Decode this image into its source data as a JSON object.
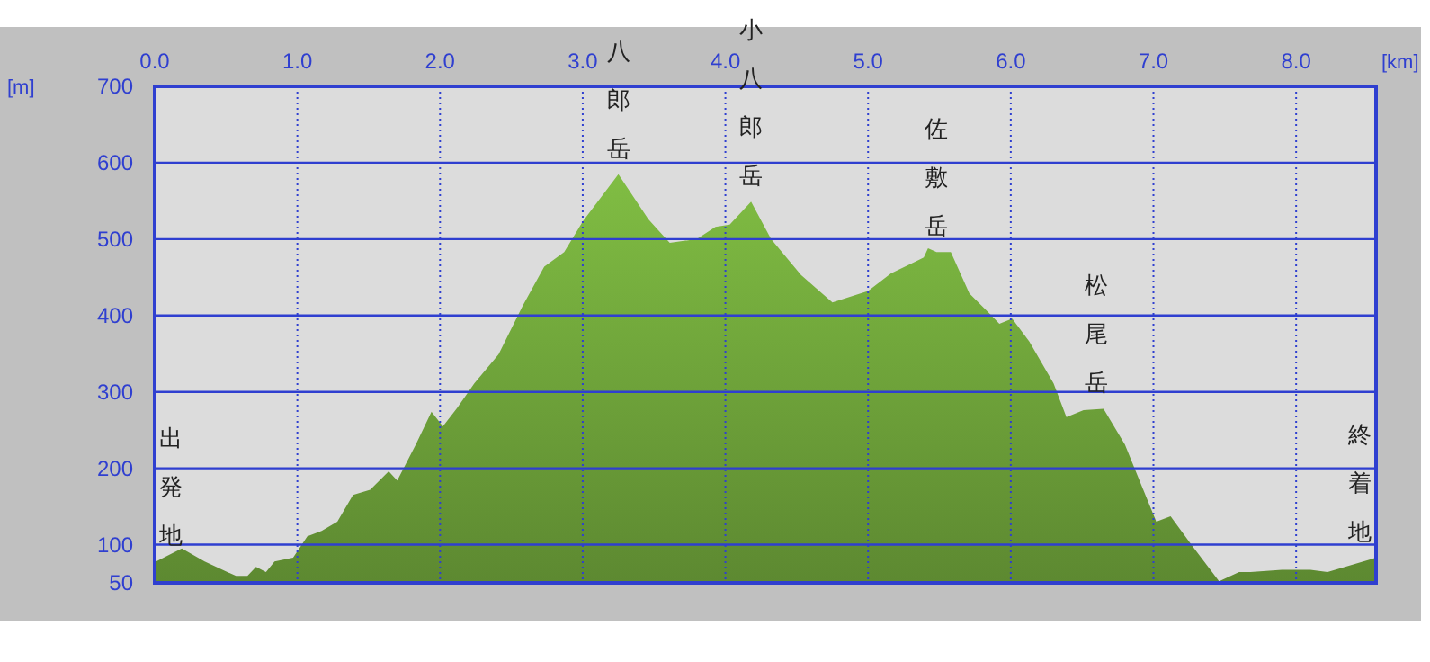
{
  "chart_data": {
    "type": "area",
    "xlabel": "[km]",
    "ylabel": "[m]",
    "x": [
      0.01,
      0.19,
      0.35,
      0.57,
      0.65,
      0.71,
      0.78,
      0.84,
      0.97,
      1.07,
      1.17,
      1.28,
      1.39,
      1.51,
      1.64,
      1.7,
      1.83,
      1.94,
      2.02,
      2.12,
      2.24,
      2.41,
      2.58,
      2.73,
      2.87,
      3.0,
      3.25,
      3.46,
      3.61,
      3.8,
      3.93,
      4.03,
      4.18,
      4.32,
      4.53,
      4.75,
      5.0,
      5.16,
      5.39,
      5.42,
      5.48,
      5.58,
      5.71,
      5.86,
      5.92,
      6.01,
      6.13,
      6.3,
      6.39,
      6.51,
      6.65,
      6.8,
      7.02,
      7.12,
      7.27,
      7.46,
      7.6,
      7.68,
      7.9,
      8.1,
      8.22,
      8.56
    ],
    "series": [
      {
        "color": "#6b9e38",
        "values": [
          78,
          95,
          78,
          59,
          59,
          71,
          64,
          78,
          83,
          111,
          118,
          130,
          165,
          172,
          196,
          184,
          231,
          274,
          255,
          279,
          311,
          349,
          413,
          464,
          483,
          523,
          585,
          526,
          495,
          500,
          516,
          519,
          549,
          500,
          453,
          417,
          432,
          455,
          476,
          488,
          483,
          483,
          429,
          401,
          389,
          396,
          366,
          311,
          267,
          276,
          278,
          231,
          130,
          137,
          99,
          52,
          64,
          64,
          67,
          67,
          64,
          83
        ]
      }
    ],
    "xlim": [
      0,
      8.56
    ],
    "xticks": [
      {
        "value": 0,
        "label": "0.0"
      },
      {
        "value": 1,
        "label": "1.0"
      },
      {
        "value": 2,
        "label": "2.0"
      },
      {
        "value": 3,
        "label": "3.0"
      },
      {
        "value": 4,
        "label": "4.0"
      },
      {
        "value": 5,
        "label": "5.0"
      },
      {
        "value": 6,
        "label": "6.0"
      },
      {
        "value": 7,
        "label": "7.0"
      },
      {
        "value": 8,
        "label": "8.0"
      }
    ],
    "ylim": [
      50,
      700
    ],
    "yticks": [
      50,
      100,
      200,
      300,
      400,
      500,
      600,
      700
    ],
    "grid": true,
    "annotations": [
      {
        "text": "出発地",
        "x": 0.01,
        "y": 78
      },
      {
        "text": "八郎岳",
        "x": 3.25,
        "y": 585
      },
      {
        "text": "小八郎岳",
        "x": 4.18,
        "y": 549
      },
      {
        "text": "佐敷岳",
        "x": 5.48,
        "y": 483
      },
      {
        "text": "松尾岳",
        "x": 6.6,
        "y": 278
      },
      {
        "text": "終着地",
        "x": 8.56,
        "y": 83
      }
    ]
  }
}
